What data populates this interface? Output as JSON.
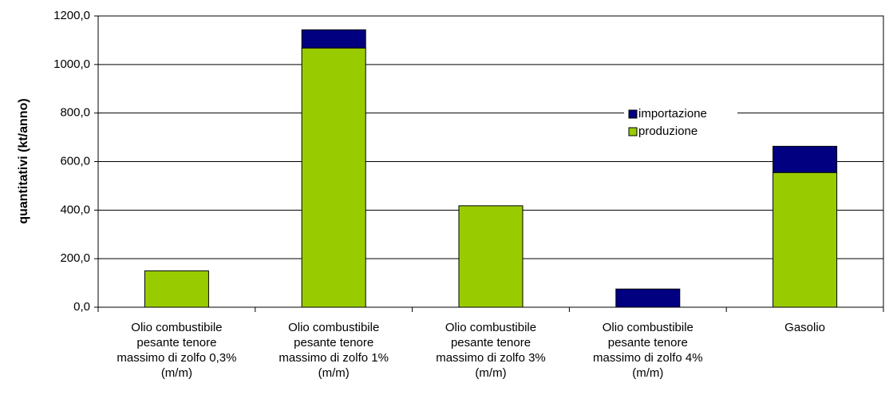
{
  "chart_data": {
    "type": "stacked_bar",
    "y_label": "quantitativi (kt/anno)",
    "categories": [
      "Olio combustibile pesante tenore massimo di zolfo 0,3% (m/m)",
      "Olio combustibile pesante tenore massimo di zolfo 1% (m/m)",
      "Olio combustibile pesante tenore massimo di zolfo 3% (m/m)",
      "Olio combustibile pesante tenore massimo di zolfo 4% (m/m)",
      "Gasolio"
    ],
    "series": [
      {
        "name": "produzione",
        "color": "#99cc00",
        "values": [
          150,
          1068,
          418,
          0,
          555
        ]
      },
      {
        "name": "importazione",
        "color": "#000080",
        "values": [
          0,
          75,
          0,
          75,
          108
        ]
      }
    ],
    "ylim": [
      0,
      1200
    ],
    "yticks": [
      {
        "value": 0,
        "label": "0,0"
      },
      {
        "value": 200,
        "label": "200,0"
      },
      {
        "value": 400,
        "label": "400,0"
      },
      {
        "value": 600,
        "label": "600,0"
      },
      {
        "value": 800,
        "label": "800,0"
      },
      {
        "value": 1000,
        "label": "1000,0"
      },
      {
        "value": 1200,
        "label": "1200,0"
      }
    ],
    "grid": true,
    "legend": "upper right"
  }
}
